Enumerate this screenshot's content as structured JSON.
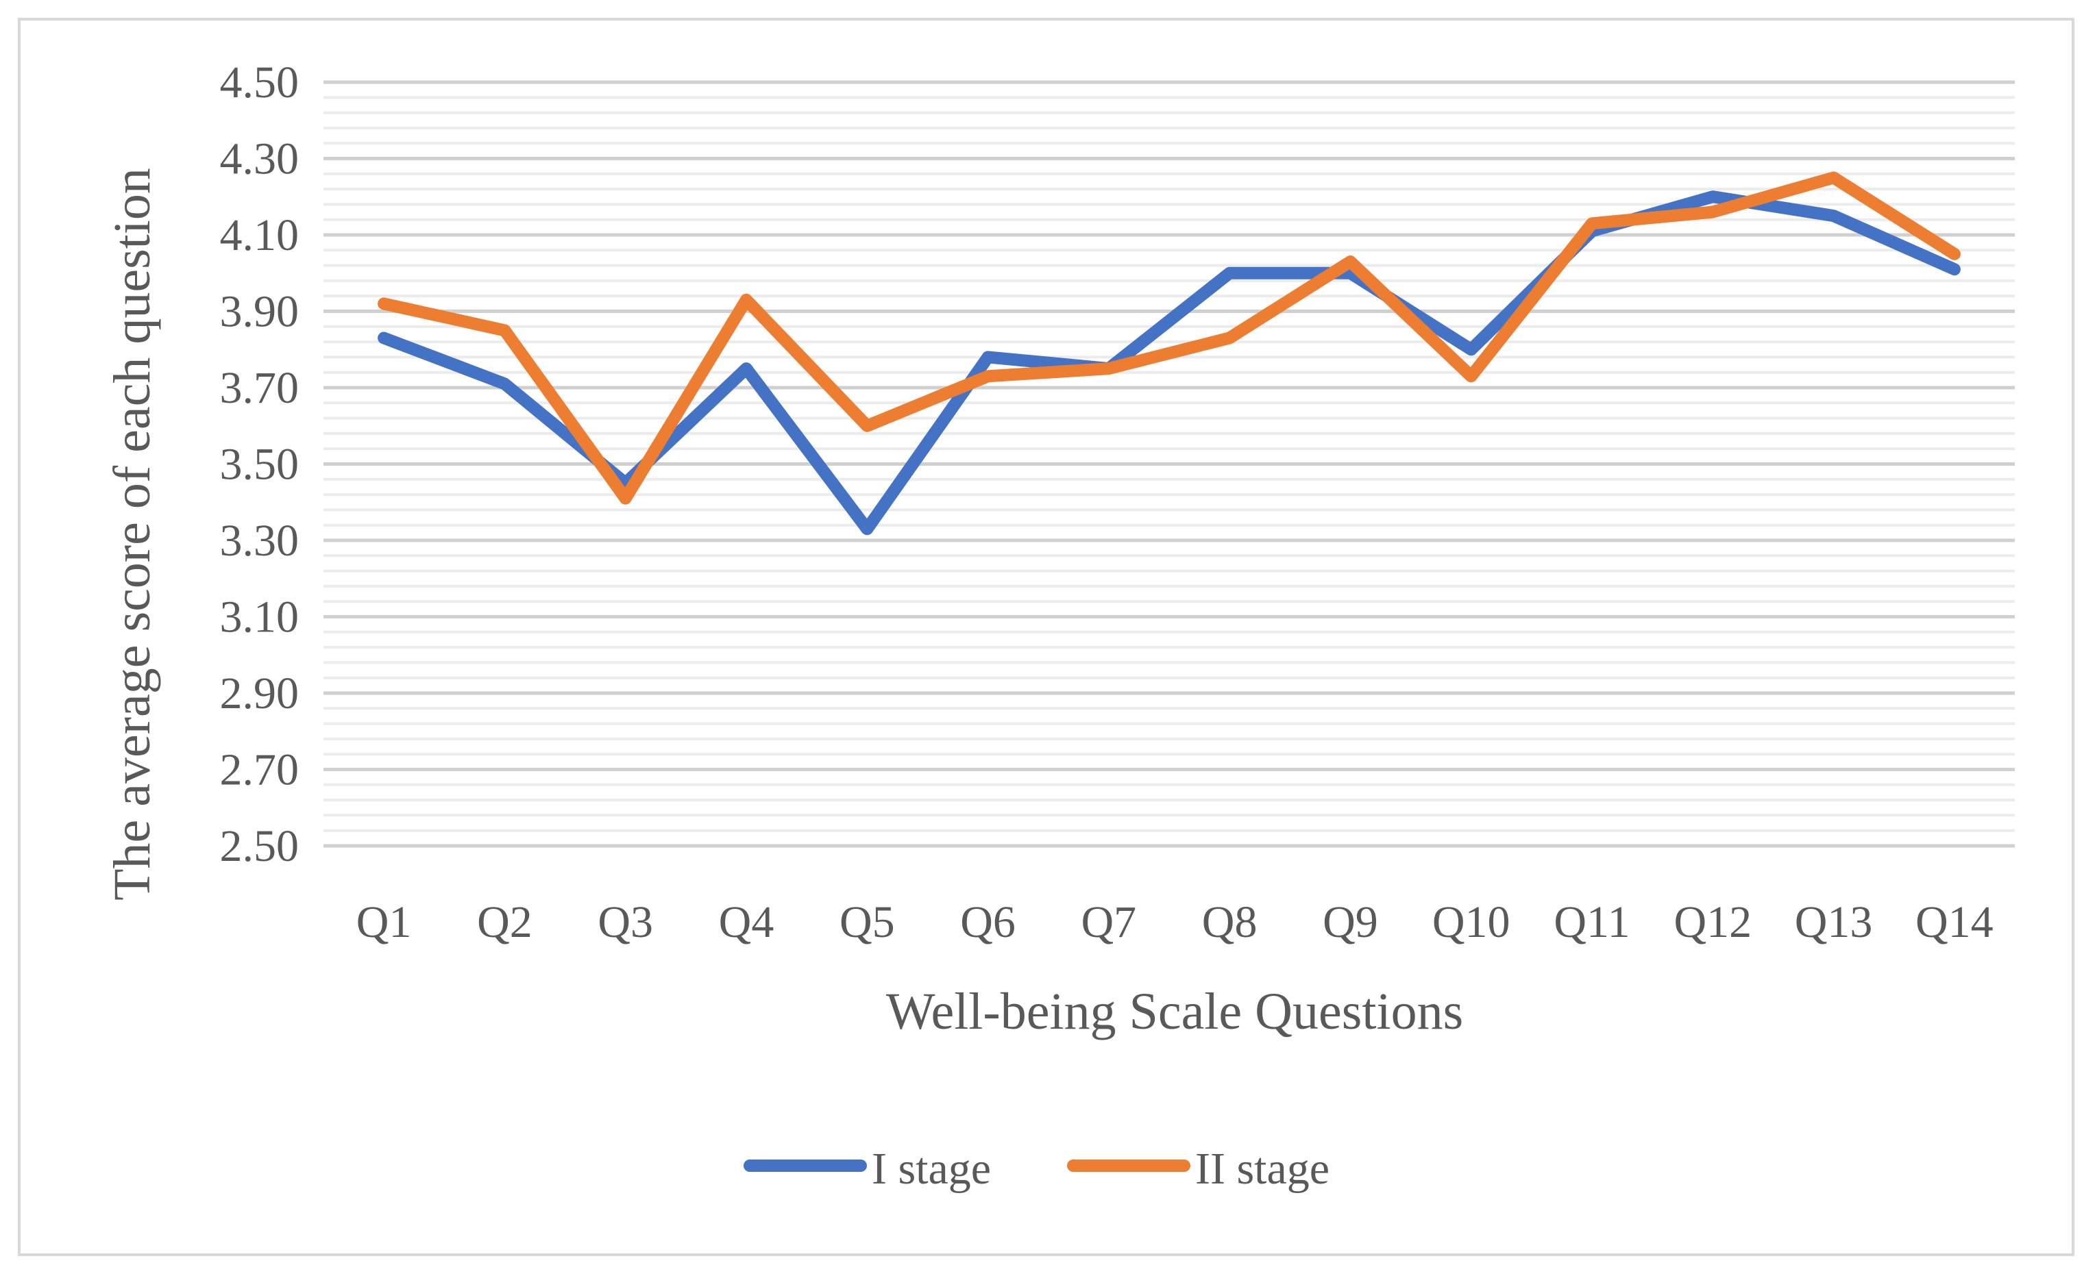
{
  "chart_data": {
    "type": "line",
    "title": "",
    "xlabel": "Well-being Scale Questions",
    "ylabel": "The average score of each question",
    "categories": [
      "Q1",
      "Q2",
      "Q3",
      "Q4",
      "Q5",
      "Q6",
      "Q7",
      "Q8",
      "Q9",
      "Q10",
      "Q11",
      "Q12",
      "Q13",
      "Q14"
    ],
    "ylim": [
      2.5,
      4.5
    ],
    "yticks": [
      "4.50",
      "4.30",
      "4.10",
      "3.90",
      "3.70",
      "3.50",
      "3.30",
      "3.10",
      "2.90",
      "2.70",
      "2.50"
    ],
    "grid": true,
    "legend_position": "bottom",
    "series": [
      {
        "name": "I stage",
        "color": "#4472c4",
        "values": [
          3.83,
          3.71,
          3.45,
          3.75,
          3.33,
          3.78,
          3.75,
          4.0,
          4.0,
          3.8,
          4.11,
          4.2,
          4.15,
          4.01
        ]
      },
      {
        "name": "II stage",
        "color": "#ed7d31",
        "values": [
          3.92,
          3.85,
          3.41,
          3.93,
          3.6,
          3.73,
          3.75,
          3.83,
          4.03,
          3.73,
          4.13,
          4.16,
          4.25,
          4.05
        ]
      }
    ]
  }
}
